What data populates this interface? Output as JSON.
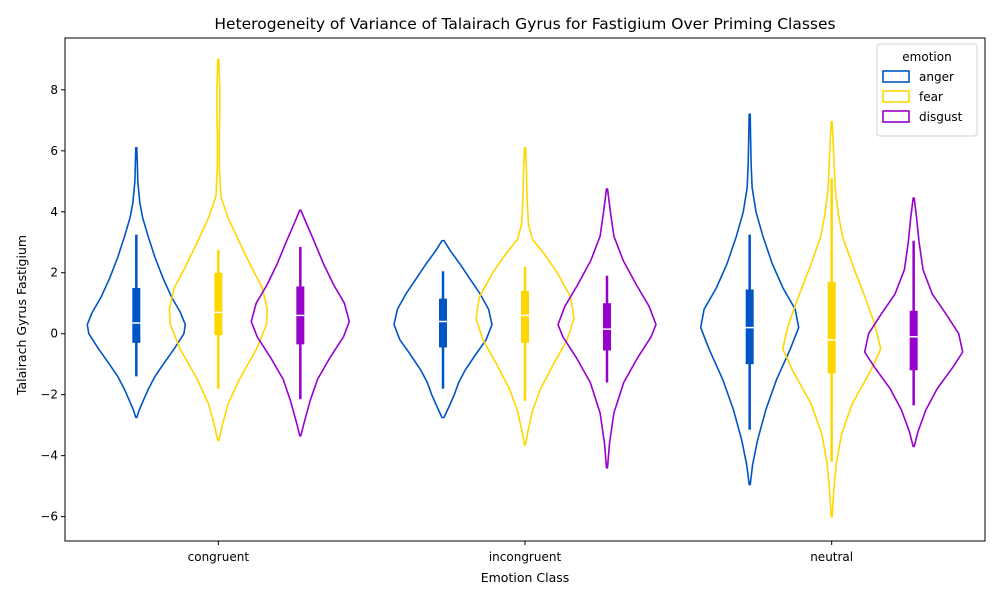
{
  "chart_data": {
    "type": "violin",
    "title": "Heterogeneity of Variance of Talairach Gyrus for Fastigium Over Priming Classes",
    "xlabel": "Emotion Class",
    "ylabel": "Talairach Gyrus Fastigium",
    "categories": [
      "congruent",
      "incongruent",
      "neutral"
    ],
    "ylim": [
      -6.8,
      9.7
    ],
    "yticks": [
      -6,
      -4,
      -2,
      0,
      2,
      4,
      6,
      8
    ],
    "legend": {
      "title": "emotion",
      "placement": "top-right"
    },
    "series": [
      {
        "name": "anger",
        "color": "#0055c4",
        "groups": [
          {
            "category": "congruent",
            "min": -2.75,
            "max": 6.1,
            "q1": -0.3,
            "median": 0.35,
            "q3": 1.5,
            "whisker_low": -1.4,
            "whisker_high": 3.25,
            "density": [
              [
                -2.75,
                0.01
              ],
              [
                -2.5,
                0.06
              ],
              [
                -2.2,
                0.14
              ],
              [
                -1.8,
                0.25
              ],
              [
                -1.4,
                0.38
              ],
              [
                -1,
                0.55
              ],
              [
                -0.5,
                0.77
              ],
              [
                0,
                0.97
              ],
              [
                0.3,
                1
              ],
              [
                0.7,
                0.9
              ],
              [
                1.2,
                0.72
              ],
              [
                1.8,
                0.55
              ],
              [
                2.5,
                0.38
              ],
              [
                3.2,
                0.24
              ],
              [
                3.8,
                0.13
              ],
              [
                4.3,
                0.07
              ],
              [
                5,
                0.03
              ],
              [
                5.6,
                0.02
              ],
              [
                6.1,
                0.01
              ]
            ]
          },
          {
            "category": "incongruent",
            "min": -2.75,
            "max": 3.05,
            "q1": -0.45,
            "median": 0.4,
            "q3": 1.15,
            "whisker_low": -1.8,
            "whisker_high": 2.05,
            "density": [
              [
                -2.75,
                0.02
              ],
              [
                -2.4,
                0.12
              ],
              [
                -2,
                0.23
              ],
              [
                -1.6,
                0.32
              ],
              [
                -1.2,
                0.45
              ],
              [
                -0.7,
                0.66
              ],
              [
                -0.2,
                0.88
              ],
              [
                0.3,
                1
              ],
              [
                0.8,
                0.93
              ],
              [
                1.3,
                0.76
              ],
              [
                1.8,
                0.55
              ],
              [
                2.3,
                0.34
              ],
              [
                2.7,
                0.16
              ],
              [
                3.05,
                0.02
              ]
            ]
          },
          {
            "category": "neutral",
            "min": -4.95,
            "max": 7.2,
            "q1": -1.0,
            "median": 0.2,
            "q3": 1.45,
            "whisker_low": -3.15,
            "whisker_high": 3.25,
            "density": [
              [
                -4.95,
                0.01
              ],
              [
                -4.3,
                0.06
              ],
              [
                -3.5,
                0.16
              ],
              [
                -2.5,
                0.33
              ],
              [
                -1.5,
                0.55
              ],
              [
                -0.5,
                0.83
              ],
              [
                0.2,
                1
              ],
              [
                0.8,
                0.93
              ],
              [
                1.5,
                0.68
              ],
              [
                2.3,
                0.46
              ],
              [
                3.2,
                0.27
              ],
              [
                4,
                0.13
              ],
              [
                4.8,
                0.05
              ],
              [
                5.6,
                0.03
              ],
              [
                6.4,
                0.02
              ],
              [
                7.2,
                0.01
              ]
            ]
          }
        ]
      },
      {
        "name": "fear",
        "color": "#ffd700",
        "groups": [
          {
            "category": "congruent",
            "min": -3.5,
            "max": 9.0,
            "q1": -0.05,
            "median": 0.7,
            "q3": 2.0,
            "whisker_low": -1.8,
            "whisker_high": 2.75,
            "density": [
              [
                -3.5,
                0.01
              ],
              [
                -3,
                0.08
              ],
              [
                -2.3,
                0.2
              ],
              [
                -1.5,
                0.43
              ],
              [
                -0.5,
                0.78
              ],
              [
                0.3,
                0.98
              ],
              [
                0.8,
                1
              ],
              [
                1.5,
                0.9
              ],
              [
                2.2,
                0.67
              ],
              [
                3,
                0.43
              ],
              [
                3.8,
                0.2
              ],
              [
                4.5,
                0.05
              ],
              [
                5.5,
                0.02
              ],
              [
                6.5,
                0.02
              ],
              [
                7.3,
                0.03
              ],
              [
                8,
                0.03
              ],
              [
                9,
                0.01
              ]
            ]
          },
          {
            "category": "incongruent",
            "min": -3.65,
            "max": 6.1,
            "q1": -0.3,
            "median": 0.6,
            "q3": 1.4,
            "whisker_low": -2.2,
            "whisker_high": 2.2,
            "density": [
              [
                -3.65,
                0.01
              ],
              [
                -3.2,
                0.06
              ],
              [
                -2.5,
                0.16
              ],
              [
                -1.8,
                0.32
              ],
              [
                -1,
                0.58
              ],
              [
                -0.2,
                0.86
              ],
              [
                0.5,
                1
              ],
              [
                1.2,
                0.93
              ],
              [
                2,
                0.66
              ],
              [
                2.6,
                0.4
              ],
              [
                3.1,
                0.15
              ],
              [
                3.6,
                0.07
              ],
              [
                4.5,
                0.04
              ],
              [
                5.3,
                0.03
              ],
              [
                6.1,
                0.01
              ]
            ]
          },
          {
            "category": "neutral",
            "min": -6.0,
            "max": 6.95,
            "q1": -1.3,
            "median": -0.2,
            "q3": 1.7,
            "whisker_low": -4.2,
            "whisker_high": 5.1,
            "density": [
              [
                -6,
                0.01
              ],
              [
                -5.2,
                0.04
              ],
              [
                -4.3,
                0.09
              ],
              [
                -3.3,
                0.2
              ],
              [
                -2.3,
                0.42
              ],
              [
                -1.2,
                0.8
              ],
              [
                -0.5,
                1
              ],
              [
                0.3,
                0.88
              ],
              [
                1.2,
                0.68
              ],
              [
                2.2,
                0.44
              ],
              [
                3.2,
                0.22
              ],
              [
                4,
                0.13
              ],
              [
                4.8,
                0.07
              ],
              [
                5.6,
                0.05
              ],
              [
                6.3,
                0.03
              ],
              [
                6.95,
                0.01
              ]
            ]
          }
        ]
      },
      {
        "name": "disgust",
        "color": "#9900cc",
        "groups": [
          {
            "category": "congruent",
            "min": -3.35,
            "max": 4.05,
            "q1": -0.35,
            "median": 0.6,
            "q3": 1.55,
            "whisker_low": -2.15,
            "whisker_high": 2.85,
            "density": [
              [
                -3.35,
                0.01
              ],
              [
                -2.9,
                0.08
              ],
              [
                -2.2,
                0.2
              ],
              [
                -1.5,
                0.35
              ],
              [
                -0.8,
                0.6
              ],
              [
                -0.1,
                0.88
              ],
              [
                0.4,
                1
              ],
              [
                1,
                0.9
              ],
              [
                1.6,
                0.68
              ],
              [
                2.3,
                0.47
              ],
              [
                3,
                0.29
              ],
              [
                3.6,
                0.13
              ],
              [
                4.05,
                0.01
              ]
            ]
          },
          {
            "category": "incongruent",
            "min": -4.4,
            "max": 4.75,
            "q1": -0.55,
            "median": 0.15,
            "q3": 1.0,
            "whisker_low": -1.6,
            "whisker_high": 1.9,
            "density": [
              [
                -4.4,
                0.01
              ],
              [
                -3.6,
                0.05
              ],
              [
                -2.6,
                0.14
              ],
              [
                -1.6,
                0.34
              ],
              [
                -0.8,
                0.62
              ],
              [
                -0.1,
                0.9
              ],
              [
                0.3,
                1
              ],
              [
                0.9,
                0.86
              ],
              [
                1.6,
                0.6
              ],
              [
                2.4,
                0.33
              ],
              [
                3.2,
                0.14
              ],
              [
                4,
                0.07
              ],
              [
                4.75,
                0.01
              ]
            ]
          },
          {
            "category": "neutral",
            "min": -3.7,
            "max": 4.45,
            "q1": -1.2,
            "median": -0.1,
            "q3": 0.75,
            "whisker_low": -2.35,
            "whisker_high": 3.05,
            "density": [
              [
                -3.7,
                0.01
              ],
              [
                -3.2,
                0.09
              ],
              [
                -2.5,
                0.25
              ],
              [
                -1.8,
                0.48
              ],
              [
                -1.1,
                0.8
              ],
              [
                -0.6,
                1
              ],
              [
                0,
                0.92
              ],
              [
                0.6,
                0.68
              ],
              [
                1.3,
                0.38
              ],
              [
                2.1,
                0.19
              ],
              [
                3,
                0.11
              ],
              [
                3.8,
                0.06
              ],
              [
                4.45,
                0.01
              ]
            ]
          }
        ]
      }
    ]
  }
}
